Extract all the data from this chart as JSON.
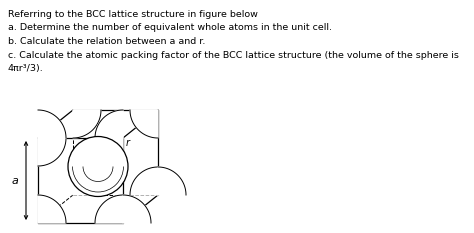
{
  "background_color": "#ffffff",
  "text_lines": [
    "Referring to the BCC lattice structure in figure below",
    "a. Determine the number of equivalent whole atoms in the unit cell.",
    "b. Calculate the relation between a and r.",
    "c. Calculate the atomic packing factor of the BCC lattice structure (the volume of the sphere is",
    "4πr³/3)."
  ],
  "fig_width": 4.74,
  "fig_height": 2.33,
  "text_fontsize": 6.8
}
